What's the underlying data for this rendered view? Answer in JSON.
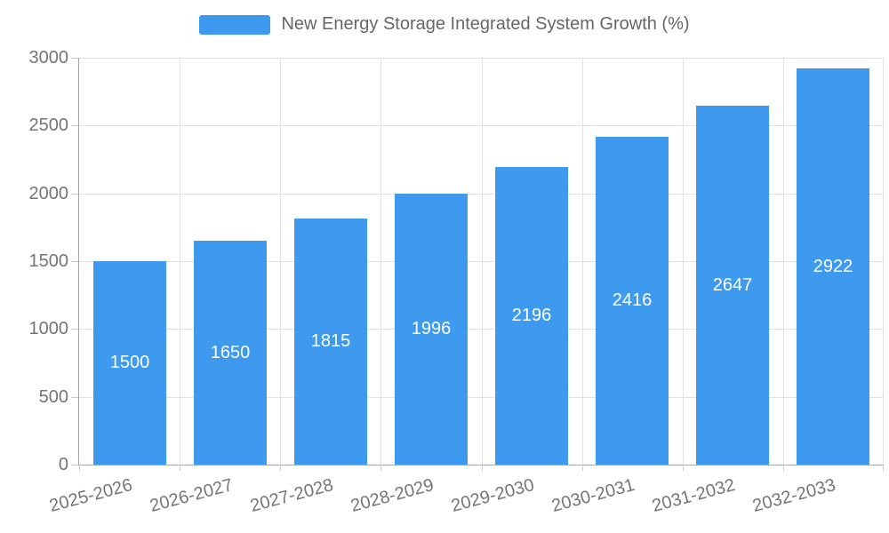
{
  "chart_data": {
    "type": "bar",
    "title": "",
    "series_name": "New Energy Storage Integrated System Growth (%)",
    "categories": [
      "2025-2026",
      "2026-2027",
      "2027-2028",
      "2028-2029",
      "2029-2030",
      "2030-2031",
      "2031-2032",
      "2032-2033"
    ],
    "values": [
      1500,
      1650,
      1815,
      1996,
      2196,
      2416,
      2647,
      2922
    ],
    "bar_labels": [
      "1500",
      "1650",
      "1815",
      "1996",
      "2196",
      "2416",
      "2647",
      "2922"
    ],
    "ylim": [
      0,
      3000
    ],
    "yticks": [
      0,
      500,
      1000,
      1500,
      2000,
      2500,
      3000
    ],
    "ytick_labels": [
      "0",
      "500",
      "1000",
      "1500",
      "2000",
      "2500",
      "3000"
    ],
    "grid": true,
    "legend_position": "top",
    "bar_label_position": "inside-center",
    "xlabel": "",
    "ylabel": "",
    "colors": {
      "bar": "#3D9AEE",
      "bar_label": "#FFFFFF",
      "axis_text": "#757575",
      "legend_text": "#666666",
      "grid_line": "#E2E2E2",
      "axis_line": "#A6A6A6",
      "tick_line": "#C9C9C9",
      "background": "#FFFFFF"
    }
  }
}
